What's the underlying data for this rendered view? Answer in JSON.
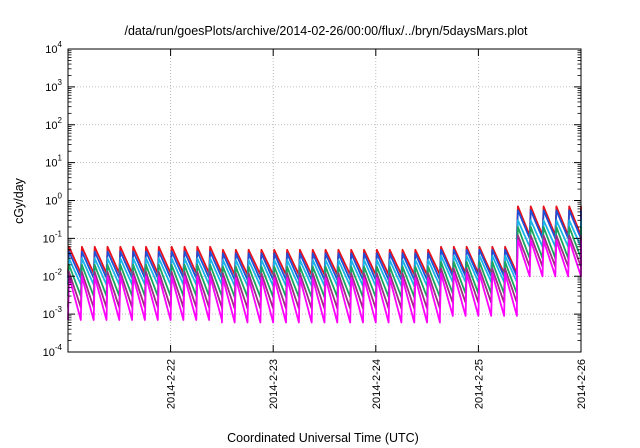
{
  "chart_data": {
    "type": "line",
    "title": "/data/run/goesPlots/archive/2014-02-26/00:00/flux/../bryn/5daysMars.plot",
    "xlabel": "Coordinated Universal Time (UTC)",
    "ylabel": "cGy/day",
    "y_scale": "log",
    "ylim": [
      0.0001,
      10000
    ],
    "y_ticks": [
      {
        "value": 0.0001,
        "base": "10",
        "exp": "-4"
      },
      {
        "value": 0.001,
        "base": "10",
        "exp": "-3"
      },
      {
        "value": 0.01,
        "base": "10",
        "exp": "-2"
      },
      {
        "value": 0.1,
        "base": "10",
        "exp": "-1"
      },
      {
        "value": 1,
        "base": "10",
        "exp": "0"
      },
      {
        "value": 10,
        "base": "10",
        "exp": "1"
      },
      {
        "value": 100,
        "base": "10",
        "exp": "2"
      },
      {
        "value": 1000,
        "base": "10",
        "exp": "3"
      },
      {
        "value": 10000,
        "base": "10",
        "exp": "4"
      }
    ],
    "xlim": [
      "2014-02-21T00:00",
      "2014-02-26T00:00"
    ],
    "x_ticks": [
      "2014-2-22",
      "2014-2-23",
      "2014-2-24",
      "2014-2-25",
      "2014-2-26"
    ],
    "grid": true,
    "legend": "none",
    "cycle_hours": 3,
    "series": [
      {
        "color": "#e8101a",
        "peaks": [
          0.06,
          0.06,
          0.05,
          0.05,
          0.05,
          0.06,
          0.7
        ],
        "troughs": [
          0.012,
          0.012,
          0.011,
          0.011,
          0.011,
          0.012,
          0.12
        ]
      },
      {
        "color": "#1f4fd6",
        "peaks": [
          0.045,
          0.045,
          0.04,
          0.04,
          0.04,
          0.05,
          0.55
        ],
        "troughs": [
          0.009,
          0.009,
          0.008,
          0.008,
          0.008,
          0.01,
          0.1
        ]
      },
      {
        "color": "#19b5e8",
        "peaks": [
          0.03,
          0.03,
          0.027,
          0.027,
          0.027,
          0.035,
          0.3
        ],
        "troughs": [
          0.006,
          0.006,
          0.0055,
          0.0055,
          0.0055,
          0.007,
          0.06
        ]
      },
      {
        "color": "#1aa65f",
        "peaks": [
          0.02,
          0.02,
          0.018,
          0.018,
          0.018,
          0.024,
          0.2
        ],
        "troughs": [
          0.003,
          0.003,
          0.0028,
          0.0028,
          0.0028,
          0.0035,
          0.03
        ]
      },
      {
        "color": "#9b2d82",
        "peaks": [
          0.013,
          0.013,
          0.012,
          0.012,
          0.012,
          0.016,
          0.12
        ],
        "troughs": [
          0.0015,
          0.0015,
          0.0014,
          0.0014,
          0.0014,
          0.002,
          0.018
        ]
      },
      {
        "color": "#ff00ff",
        "peaks": [
          0.01,
          0.01,
          0.009,
          0.009,
          0.009,
          0.012,
          0.09
        ],
        "troughs": [
          0.0007,
          0.0007,
          0.0006,
          0.0006,
          0.0006,
          0.0009,
          0.01
        ]
      }
    ]
  }
}
